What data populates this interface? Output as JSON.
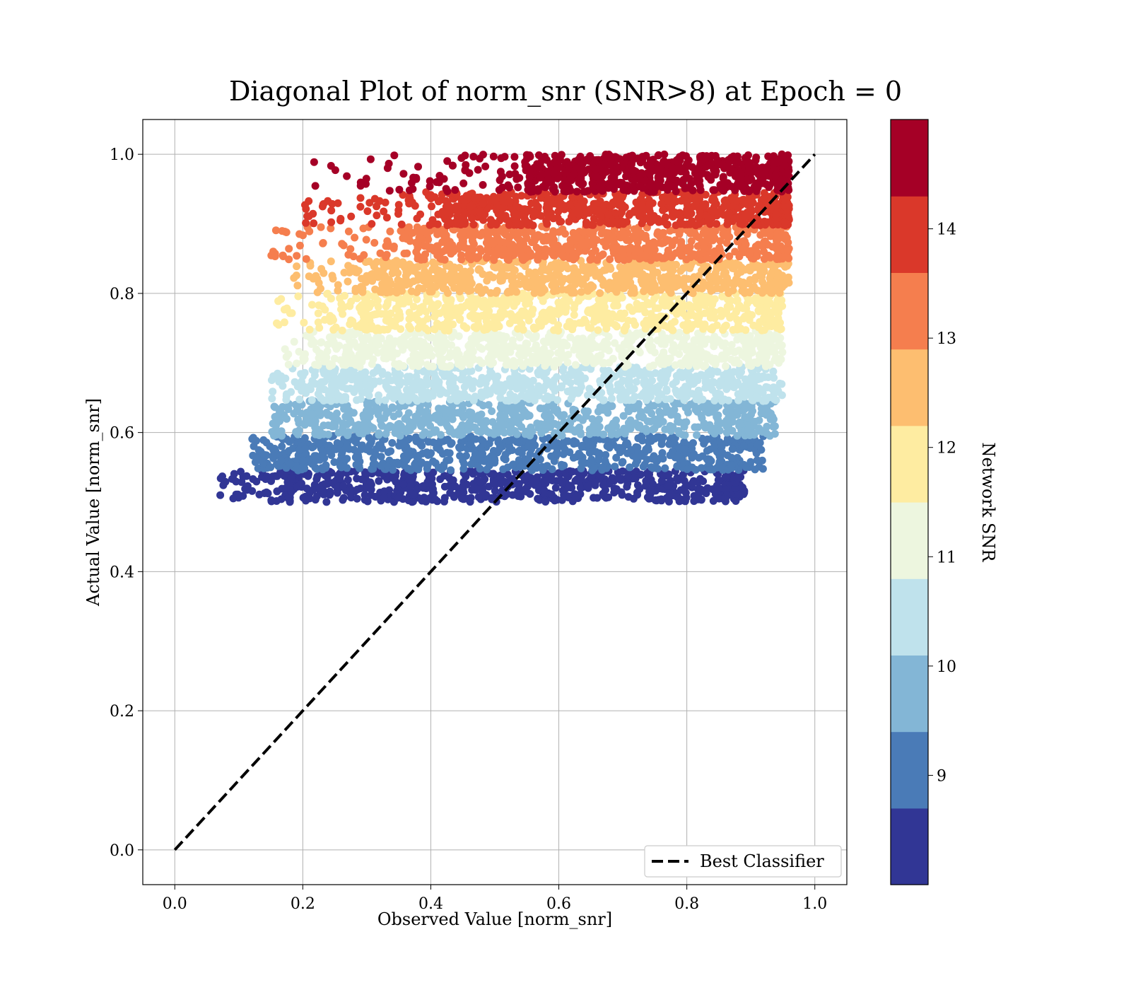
{
  "chart_data": {
    "type": "scatter",
    "title": "Diagonal Plot of norm_snr (SNR>8) at Epoch = 0",
    "xlabel": "Observed Value [norm_snr]",
    "ylabel": "Actual Value [norm_snr]",
    "xlim": [
      -0.05,
      1.05
    ],
    "ylim": [
      -0.05,
      1.05
    ],
    "x_ticks": [
      "0.0",
      "0.2",
      "0.4",
      "0.6",
      "0.8",
      "1.0"
    ],
    "y_ticks": [
      "0.0",
      "0.2",
      "0.4",
      "0.6",
      "0.8",
      "1.0"
    ],
    "grid": true,
    "legend": {
      "placement": "lower-right",
      "entries": [
        "Best Classifier"
      ]
    },
    "reference_line": {
      "name": "Best Classifier",
      "style": "dashed",
      "color": "#000000",
      "x": [
        0.0,
        1.0
      ],
      "y": [
        0.0,
        1.0
      ]
    },
    "colorbar": {
      "label": "Network SNR",
      "range": [
        8.0,
        15.0
      ],
      "tick_values": [
        9,
        10,
        11,
        12,
        13,
        14
      ],
      "tick_labels": [
        "9",
        "10",
        "11",
        "12",
        "13",
        "14"
      ],
      "colors": [
        "#313695",
        "#4575b4",
        "#74add1",
        "#abd9e9",
        "#e0f3f8",
        "#ffffbf",
        "#fee090",
        "#fdae61",
        "#f46d43",
        "#a50026"
      ],
      "band_colors": [
        "#313695",
        "#4a7bb7",
        "#83b6d6",
        "#bfe2ec",
        "#edf6df",
        "#feeca1",
        "#fdbe70",
        "#f57e4e",
        "#da382a",
        "#a50026"
      ]
    },
    "bands": [
      {
        "snr": [
          8.0,
          8.7
        ],
        "y": [
          0.5,
          0.5455
        ],
        "x_core": [
          0.18,
          0.86
        ],
        "x_full": [
          0.07,
          0.89
        ]
      },
      {
        "snr": [
          8.7,
          9.4
        ],
        "y": [
          0.5455,
          0.5952
        ],
        "x_core": [
          0.2,
          0.87
        ],
        "x_full": [
          0.12,
          0.92
        ]
      },
      {
        "snr": [
          9.4,
          10.1
        ],
        "y": [
          0.5952,
          0.6452
        ],
        "x_core": [
          0.22,
          0.89
        ],
        "x_full": [
          0.15,
          0.94
        ]
      },
      {
        "snr": [
          10.1,
          10.8
        ],
        "y": [
          0.6452,
          0.6944
        ],
        "x_core": [
          0.25,
          0.9
        ],
        "x_full": [
          0.15,
          0.95
        ]
      },
      {
        "snr": [
          10.8,
          11.5
        ],
        "y": [
          0.6944,
          0.7463
        ],
        "x_core": [
          0.28,
          0.91
        ],
        "x_full": [
          0.17,
          0.95
        ]
      },
      {
        "snr": [
          11.5,
          12.2
        ],
        "y": [
          0.7463,
          0.8
        ],
        "x_core": [
          0.3,
          0.92
        ],
        "x_full": [
          0.15,
          0.95
        ]
      },
      {
        "snr": [
          12.2,
          12.9
        ],
        "y": [
          0.8,
          0.8475
        ],
        "x_core": [
          0.33,
          0.93
        ],
        "x_full": [
          0.18,
          0.96
        ]
      },
      {
        "snr": [
          12.9,
          13.6
        ],
        "y": [
          0.8475,
          0.8977
        ],
        "x_core": [
          0.38,
          0.94
        ],
        "x_full": [
          0.15,
          0.96
        ]
      },
      {
        "snr": [
          13.6,
          14.3
        ],
        "y": [
          0.8977,
          0.9459
        ],
        "x_core": [
          0.44,
          0.95
        ],
        "x_full": [
          0.2,
          0.96
        ]
      },
      {
        "snr": [
          14.3,
          15.0
        ],
        "y": [
          0.9459,
          1.0
        ],
        "x_core": [
          0.55,
          0.95
        ],
        "x_full": [
          0.19,
          0.96
        ]
      }
    ],
    "samples_per_band": 700
  }
}
